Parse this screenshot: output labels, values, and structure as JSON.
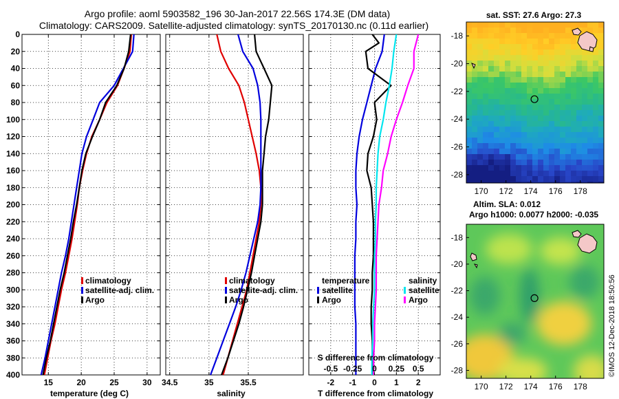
{
  "header": {
    "line1": "Argo profile: aoml 5903582_196 30-Jan-2017 22.56S 174.3E (DM data)",
    "line2": "Climatology: CARS2009. Satellite-adjusted climatology: synTS_20170130.nc (0.11d earlier)"
  },
  "side": {
    "map1_title": "sat. SST: 27.6 Argo: 27.3",
    "map2_title1": "Altim. SLA: 0.012",
    "map2_title2": "Argo h1000: 0.0077 h2000: -0.035",
    "watermark": "©IMOS 12-Dec-2018 18:50:56"
  },
  "colors": {
    "climatology": "#e00000",
    "satellite": "#0000dd",
    "argo": "#000000",
    "sat_sal": "#00e5ee",
    "argo_sal": "#ff00ff"
  },
  "chart_data": [
    {
      "type": "line",
      "title": "",
      "xlabel": "temperature (deg C)",
      "ylabel": "",
      "xlim": [
        11,
        32
      ],
      "ylim": [
        400,
        0
      ],
      "xticks": [
        15,
        20,
        25,
        30
      ],
      "yticks": [
        0,
        20,
        40,
        60,
        80,
        100,
        120,
        140,
        160,
        180,
        200,
        220,
        240,
        260,
        280,
        300,
        320,
        340,
        360,
        380,
        400
      ],
      "grid": true,
      "legend": [
        "climatology",
        "satellite-adj. clim.",
        "Argo"
      ],
      "legend_position": "lower-right",
      "series": [
        {
          "name": "climatology",
          "color": "#e00000",
          "points": [
            [
              27.6,
              0
            ],
            [
              27.4,
              20
            ],
            [
              26.5,
              40
            ],
            [
              25.5,
              60
            ],
            [
              23.9,
              80
            ],
            [
              22.8,
              100
            ],
            [
              21.6,
              120
            ],
            [
              20.8,
              140
            ],
            [
              20.2,
              160
            ],
            [
              19.7,
              180
            ],
            [
              19.4,
              200
            ],
            [
              19.0,
              220
            ],
            [
              18.6,
              240
            ],
            [
              18.1,
              260
            ],
            [
              17.6,
              280
            ],
            [
              17.0,
              300
            ],
            [
              16.5,
              320
            ],
            [
              16.0,
              340
            ],
            [
              15.4,
              360
            ],
            [
              14.9,
              380
            ],
            [
              14.4,
              400
            ]
          ]
        },
        {
          "name": "satellite-adj. clim.",
          "color": "#0000dd",
          "points": [
            [
              28.0,
              0
            ],
            [
              27.8,
              20
            ],
            [
              26.4,
              40
            ],
            [
              25.0,
              60
            ],
            [
              22.8,
              80
            ],
            [
              21.8,
              100
            ],
            [
              20.8,
              120
            ],
            [
              20.1,
              140
            ],
            [
              19.7,
              160
            ],
            [
              19.3,
              180
            ],
            [
              18.9,
              200
            ],
            [
              18.5,
              220
            ],
            [
              18.1,
              240
            ],
            [
              17.6,
              260
            ],
            [
              17.0,
              280
            ],
            [
              16.5,
              300
            ],
            [
              16.0,
              320
            ],
            [
              15.5,
              340
            ],
            [
              15.0,
              360
            ],
            [
              14.5,
              380
            ],
            [
              13.9,
              400
            ]
          ]
        },
        {
          "name": "Argo",
          "color": "#000000",
          "points": [
            [
              27.5,
              0
            ],
            [
              27.2,
              20
            ],
            [
              26.5,
              40
            ],
            [
              25.4,
              60
            ],
            [
              23.7,
              80
            ],
            [
              22.8,
              100
            ],
            [
              21.7,
              120
            ],
            [
              20.7,
              140
            ],
            [
              20.1,
              160
            ],
            [
              19.7,
              180
            ],
            [
              19.3,
              200
            ],
            [
              18.8,
              220
            ],
            [
              18.4,
              240
            ],
            [
              17.9,
              260
            ],
            [
              17.4,
              280
            ],
            [
              16.8,
              300
            ],
            [
              16.3,
              320
            ],
            [
              15.8,
              340
            ],
            [
              15.3,
              360
            ],
            [
              14.7,
              380
            ],
            [
              14.2,
              400
            ]
          ]
        }
      ]
    },
    {
      "type": "line",
      "xlabel": "salinity",
      "xlim": [
        34.45,
        36.2
      ],
      "ylim": [
        400,
        0
      ],
      "xticks": [
        34.5,
        35,
        35.5
      ],
      "xtick_labels": [
        "34.5",
        "35",
        "35.5"
      ],
      "grid": true,
      "legend": [
        "climatology",
        "satellite-adj. clim.",
        "Argo"
      ],
      "legend_position": "lower-right",
      "series": [
        {
          "name": "climatology",
          "color": "#e00000",
          "points": [
            [
              35.1,
              0
            ],
            [
              35.15,
              20
            ],
            [
              35.25,
              40
            ],
            [
              35.38,
              60
            ],
            [
              35.45,
              80
            ],
            [
              35.5,
              100
            ],
            [
              35.55,
              120
            ],
            [
              35.6,
              140
            ],
            [
              35.64,
              160
            ],
            [
              35.66,
              180
            ],
            [
              35.66,
              200
            ],
            [
              35.64,
              220
            ],
            [
              35.6,
              240
            ],
            [
              35.56,
              260
            ],
            [
              35.52,
              280
            ],
            [
              35.48,
              300
            ],
            [
              35.42,
              320
            ],
            [
              35.36,
              340
            ],
            [
              35.3,
              360
            ],
            [
              35.24,
              380
            ],
            [
              35.18,
              400
            ]
          ]
        },
        {
          "name": "satellite-adj. clim.",
          "color": "#0000dd",
          "points": [
            [
              35.37,
              0
            ],
            [
              35.43,
              20
            ],
            [
              35.56,
              40
            ],
            [
              35.62,
              60
            ],
            [
              35.65,
              80
            ],
            [
              35.66,
              100
            ],
            [
              35.66,
              120
            ],
            [
              35.66,
              140
            ],
            [
              35.66,
              160
            ],
            [
              35.66,
              180
            ],
            [
              35.65,
              200
            ],
            [
              35.62,
              220
            ],
            [
              35.57,
              240
            ],
            [
              35.52,
              260
            ],
            [
              35.47,
              280
            ],
            [
              35.41,
              300
            ],
            [
              35.34,
              320
            ],
            [
              35.26,
              340
            ],
            [
              35.18,
              360
            ],
            [
              35.1,
              380
            ],
            [
              35.02,
              400
            ]
          ]
        },
        {
          "name": "Argo",
          "color": "#000000",
          "points": [
            [
              35.58,
              0
            ],
            [
              35.6,
              20
            ],
            [
              35.7,
              40
            ],
            [
              35.8,
              60
            ],
            [
              35.78,
              80
            ],
            [
              35.76,
              100
            ],
            [
              35.72,
              120
            ],
            [
              35.7,
              140
            ],
            [
              35.68,
              160
            ],
            [
              35.68,
              180
            ],
            [
              35.68,
              200
            ],
            [
              35.66,
              220
            ],
            [
              35.62,
              240
            ],
            [
              35.58,
              260
            ],
            [
              35.54,
              280
            ],
            [
              35.49,
              300
            ],
            [
              35.44,
              320
            ],
            [
              35.38,
              340
            ],
            [
              35.31,
              360
            ],
            [
              35.24,
              380
            ],
            [
              35.16,
              400
            ]
          ]
        }
      ]
    },
    {
      "type": "line",
      "xlabel": "T difference from climatology",
      "top_axis_label": "S difference from climatology",
      "xlim": [
        -3.0,
        3.0
      ],
      "ylim": [
        400,
        0
      ],
      "xticks": [
        -2,
        -1,
        0,
        1,
        2
      ],
      "secondary_xticks": [
        -0.5,
        -0.25,
        0,
        0.25,
        0.5
      ],
      "secondary_xlim": [
        -0.75,
        0.75
      ],
      "grid": true,
      "legend_temperature": {
        "title": "temperature",
        "items": [
          "satellite",
          "Argo"
        ]
      },
      "legend_salinity": {
        "title": "salinity",
        "items": [
          "satellite",
          "Argo"
        ]
      },
      "legend_position": "lower",
      "series": [
        {
          "name": "temperature satellite",
          "color": "#0000dd",
          "points": [
            [
              0.45,
              0
            ],
            [
              0.35,
              20
            ],
            [
              0.05,
              40
            ],
            [
              -0.15,
              60
            ],
            [
              -0.35,
              80
            ],
            [
              -0.55,
              100
            ],
            [
              -0.7,
              120
            ],
            [
              -0.8,
              140
            ],
            [
              -0.85,
              160
            ],
            [
              -0.85,
              180
            ],
            [
              -0.8,
              200
            ],
            [
              -0.85,
              220
            ],
            [
              -0.85,
              240
            ],
            [
              -0.9,
              260
            ],
            [
              -0.9,
              280
            ],
            [
              -0.9,
              300
            ],
            [
              -0.9,
              320
            ],
            [
              -0.85,
              340
            ],
            [
              -0.85,
              360
            ],
            [
              -0.85,
              380
            ],
            [
              -0.85,
              400
            ]
          ]
        },
        {
          "name": "temperature Argo",
          "color": "#000000",
          "points": [
            [
              -0.1,
              0
            ],
            [
              0.2,
              10
            ],
            [
              -0.4,
              20
            ],
            [
              -0.3,
              40
            ],
            [
              0.75,
              60
            ],
            [
              0.0,
              80
            ],
            [
              0.1,
              100
            ],
            [
              -0.05,
              120
            ],
            [
              -0.3,
              140
            ],
            [
              -0.35,
              160
            ],
            [
              -0.15,
              180
            ],
            [
              -0.1,
              200
            ],
            [
              -0.05,
              220
            ],
            [
              -0.05,
              240
            ],
            [
              -0.05,
              260
            ],
            [
              -0.1,
              280
            ],
            [
              -0.1,
              300
            ],
            [
              -0.15,
              320
            ],
            [
              -0.15,
              340
            ],
            [
              -0.1,
              360
            ],
            [
              -0.1,
              380
            ],
            [
              -0.05,
              400
            ]
          ]
        },
        {
          "name": "salinity satellite",
          "color": "#00e5ee",
          "points": [
            [
              0.25,
              0
            ],
            [
              0.22,
              20
            ],
            [
              0.2,
              40
            ],
            [
              0.17,
              60
            ],
            [
              0.13,
              80
            ],
            [
              0.1,
              100
            ],
            [
              0.06,
              120
            ],
            [
              0.04,
              140
            ],
            [
              0.03,
              160
            ],
            [
              0.02,
              180
            ],
            [
              0.02,
              200
            ],
            [
              0.01,
              220
            ],
            [
              0.01,
              240
            ],
            [
              0.0,
              260
            ],
            [
              0.0,
              280
            ],
            [
              0.0,
              300
            ],
            [
              -0.01,
              320
            ],
            [
              -0.02,
              340
            ],
            [
              -0.02,
              360
            ],
            [
              -0.03,
              380
            ],
            [
              -0.03,
              400
            ]
          ]
        },
        {
          "name": "salinity Argo",
          "color": "#ff00ff",
          "points": [
            [
              0.5,
              0
            ],
            [
              0.45,
              20
            ],
            [
              0.45,
              40
            ],
            [
              0.38,
              60
            ],
            [
              0.32,
              80
            ],
            [
              0.25,
              100
            ],
            [
              0.19,
              120
            ],
            [
              0.15,
              140
            ],
            [
              0.1,
              160
            ],
            [
              0.08,
              180
            ],
            [
              0.05,
              200
            ],
            [
              0.04,
              220
            ],
            [
              0.03,
              240
            ],
            [
              0.02,
              260
            ],
            [
              0.02,
              280
            ],
            [
              0.02,
              300
            ],
            [
              0.01,
              320
            ],
            [
              0.0,
              340
            ],
            [
              0.0,
              360
            ],
            [
              -0.01,
              380
            ],
            [
              -0.01,
              400
            ]
          ]
        }
      ]
    },
    {
      "type": "heatmap",
      "title": "sat. SST: 27.6 Argo: 27.3",
      "xlim": [
        168.8,
        179.9
      ],
      "ylim": [
        -28.6,
        -17.0
      ],
      "xticks": [
        170,
        172,
        174,
        176,
        178
      ],
      "yticks": [
        -18,
        -20,
        -22,
        -24,
        -26,
        -28
      ],
      "marker": [
        174.3,
        -22.56
      ]
    },
    {
      "type": "heatmap",
      "title": "Altim. SLA: 0.012",
      "xlim": [
        168.8,
        179.9
      ],
      "ylim": [
        -28.6,
        -17.0
      ],
      "xticks": [
        170,
        172,
        174,
        176,
        178
      ],
      "yticks": [
        -18,
        -20,
        -22,
        -24,
        -26,
        -28
      ],
      "marker": [
        174.3,
        -22.56
      ]
    }
  ]
}
